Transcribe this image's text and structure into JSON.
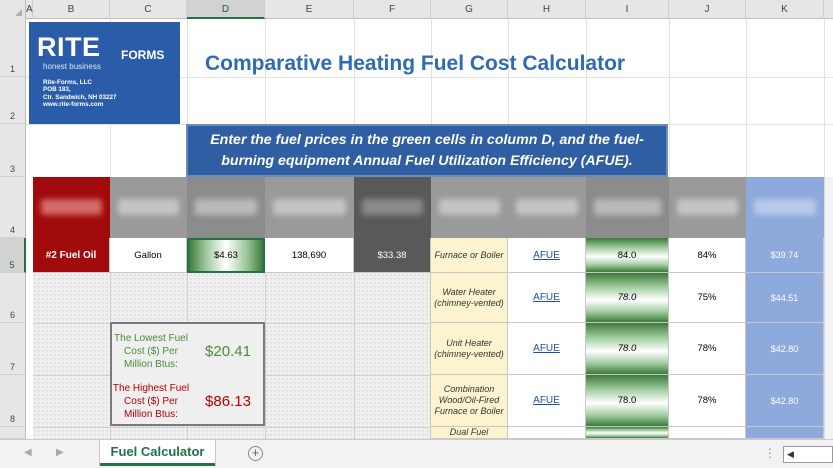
{
  "columns": [
    "A",
    "B",
    "C",
    "D",
    "E",
    "F",
    "G",
    "H",
    "I",
    "J",
    "K"
  ],
  "rows": [
    "1",
    "2",
    "3",
    "4",
    "5",
    "6",
    "7",
    "8"
  ],
  "logo": {
    "brand": "RITE",
    "forms": "FORMS",
    "tagline": "honest business",
    "address": [
      "Rite-Forms, LLC",
      "POB 183,",
      "Ctr. Sandwich, NH 03227",
      "www.rite-forms.com"
    ]
  },
  "title": "Comparative Heating Fuel Cost Calculator",
  "banner": {
    "line1": "Enter the fuel prices in the green cells in column D, and the fuel-",
    "line2": "burning equipment Annual Fuel Utilization Efficiency (AFUE)."
  },
  "header_colors": {
    "fuel_type": "#a10a0a",
    "gray": "#8c8c8c",
    "price": "#595959",
    "blue": "#8ea9db"
  },
  "row5": {
    "fuel": "#2 Fuel Oil",
    "unit": "Gallon",
    "price": "$4.63",
    "heat": "138,690",
    "price_per_million": "$33.38",
    "appliance": "Furnace or Boiler",
    "link": "AFUE",
    "rating": "84.0",
    "adjusted": "84%",
    "cost": "$39.74"
  },
  "appliances": [
    {
      "appliance": "Water Heater (chimney-vented)",
      "link": "AFUE",
      "rating": "78.0",
      "adjusted": "75%",
      "cost": "$44.51"
    },
    {
      "appliance": "Unit Heater (chimney-vented)",
      "link": "AFUE",
      "rating": "78.0",
      "adjusted": "78%",
      "cost": "$42.80"
    },
    {
      "appliance": "Combination Wood/Oil-Fired Furnace or Boiler",
      "link": "AFUE",
      "rating": "78.0",
      "adjusted": "78%",
      "cost": "$42.80"
    },
    {
      "appliance": "Dual Fuel"
    }
  ],
  "summary": {
    "lowest_label": "The Lowest Fuel Cost ($) Per Million Btus:",
    "lowest_value": "$20.41",
    "highest_label": "The Highest Fuel Cost ($) Per Million Btus:",
    "highest_value": "$86.13",
    "lowest_color": "#4b8a38",
    "highest_color": "#b40000"
  },
  "tab": {
    "label": "Fuel Calculator",
    "add": "+"
  }
}
